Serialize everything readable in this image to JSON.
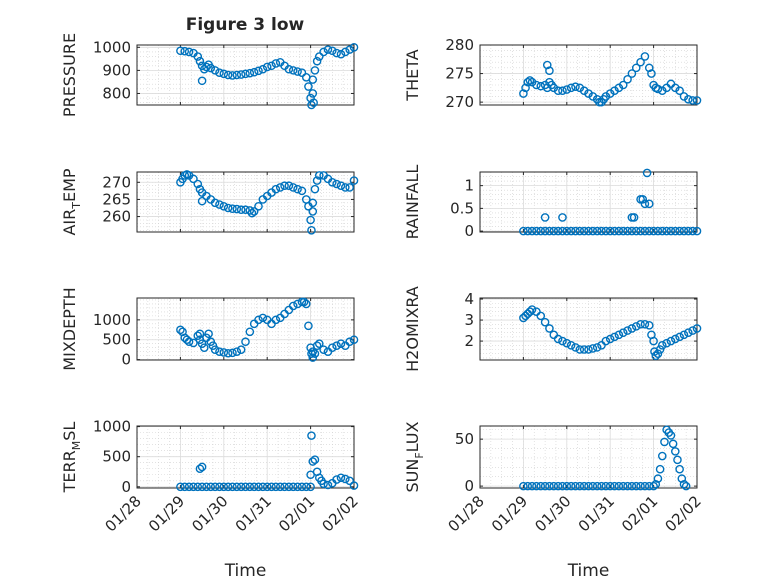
{
  "figure": {
    "title": "Figure 3 low",
    "marker_color": "#0072BD"
  },
  "x_axis": {
    "label": "Time",
    "ticks": [
      0,
      1,
      2,
      3,
      4,
      5
    ],
    "tick_labels": [
      "01/28",
      "01/29",
      "01/30",
      "01/31",
      "02/01",
      "02/02"
    ]
  },
  "chart_data": [
    {
      "type": "scatter",
      "ylabel": "PRESSURE",
      "ylim": [
        750,
        1010
      ],
      "yticks": [
        800,
        900,
        1000
      ],
      "ytick_labels": [
        "800",
        "900",
        "1000"
      ],
      "grid": true,
      "x": [
        1.0,
        1.1,
        1.2,
        1.3,
        1.4,
        1.45,
        1.5,
        1.55,
        1.6,
        1.65,
        1.7,
        1.8,
        1.9,
        2.0,
        2.1,
        2.2,
        2.3,
        2.4,
        2.5,
        2.6,
        2.7,
        2.8,
        2.9,
        3.0,
        3.1,
        3.2,
        3.3,
        3.4,
        3.5,
        3.6,
        3.7,
        3.8,
        3.9,
        3.95,
        4.0,
        4.02,
        4.05,
        4.1,
        4.15,
        4.2,
        4.3,
        4.4,
        4.5,
        4.6,
        4.7,
        4.8,
        4.9,
        5.0,
        4.05,
        4.07,
        1.5
      ],
      "y": [
        985,
        983,
        980,
        975,
        960,
        940,
        920,
        905,
        915,
        925,
        910,
        900,
        890,
        885,
        880,
        878,
        880,
        882,
        885,
        888,
        892,
        898,
        905,
        915,
        920,
        930,
        935,
        920,
        905,
        900,
        895,
        890,
        870,
        830,
        780,
        750,
        860,
        900,
        940,
        960,
        980,
        990,
        985,
        975,
        970,
        980,
        990,
        1000,
        800,
        760,
        855
      ]
    },
    {
      "type": "scatter",
      "ylabel": "THETA",
      "ylim": [
        269.5,
        280
      ],
      "yticks": [
        270,
        275,
        280
      ],
      "ytick_labels": [
        "270",
        "275",
        "280"
      ],
      "grid": true,
      "x": [
        1.0,
        1.05,
        1.1,
        1.15,
        1.2,
        1.3,
        1.4,
        1.5,
        1.55,
        1.6,
        1.65,
        1.7,
        1.8,
        1.9,
        2.0,
        2.1,
        2.2,
        2.3,
        2.4,
        2.5,
        2.6,
        2.7,
        2.75,
        2.8,
        2.85,
        2.9,
        3.0,
        3.1,
        3.2,
        3.3,
        3.4,
        3.5,
        3.6,
        3.7,
        3.8,
        3.9,
        3.95,
        4.0,
        4.05,
        4.1,
        4.2,
        4.3,
        4.4,
        4.5,
        4.6,
        4.7,
        4.8,
        4.9,
        5.0,
        1.55,
        1.6
      ],
      "y": [
        271.5,
        272.5,
        273.5,
        273.8,
        273.5,
        273,
        272.8,
        273,
        272.5,
        273.5,
        273,
        272.5,
        272,
        272,
        272.2,
        272.5,
        272.7,
        272.5,
        272,
        271.5,
        271,
        270.5,
        270,
        270,
        270.5,
        271,
        271.5,
        272,
        272.5,
        273,
        274,
        275,
        276,
        277,
        278,
        276,
        275,
        273,
        272.5,
        272.3,
        272,
        272.5,
        273.2,
        272.5,
        272,
        271,
        270.5,
        270.3,
        270.3,
        276.5,
        275.5
      ]
    },
    {
      "type": "scatter",
      "ylabel": "AIR_TEMP",
      "ylim": [
        255.5,
        273
      ],
      "yticks": [
        260,
        265,
        270
      ],
      "ytick_labels": [
        "260",
        "265",
        "270"
      ],
      "grid": true,
      "x": [
        1.0,
        1.05,
        1.1,
        1.15,
        1.2,
        1.3,
        1.4,
        1.45,
        1.5,
        1.6,
        1.7,
        1.8,
        1.9,
        2.0,
        2.1,
        2.2,
        2.3,
        2.4,
        2.5,
        2.6,
        2.65,
        2.7,
        2.8,
        2.9,
        3.0,
        3.1,
        3.2,
        3.3,
        3.4,
        3.5,
        3.6,
        3.7,
        3.8,
        3.9,
        3.95,
        4.0,
        4.02,
        4.05,
        4.1,
        4.15,
        4.2,
        4.3,
        4.4,
        4.5,
        4.6,
        4.7,
        4.8,
        4.9,
        5.0,
        4.05,
        1.5
      ],
      "y": [
        270,
        271,
        272,
        272.3,
        272,
        271,
        269.5,
        268,
        267,
        266,
        265,
        264,
        263.5,
        263,
        262.5,
        262.3,
        262.2,
        262,
        262,
        261.8,
        261,
        261.5,
        263,
        265,
        266,
        267,
        268,
        268.5,
        269,
        269,
        268.5,
        268,
        267.5,
        265,
        263,
        259,
        256,
        264,
        268,
        270.5,
        272,
        272,
        271,
        270,
        269.5,
        269,
        268.5,
        268.5,
        270.5,
        261.5,
        264.5
      ]
    },
    {
      "type": "scatter",
      "ylabel": "RAINFALL",
      "ylim": [
        -0.02,
        1.3
      ],
      "yticks": [
        0,
        0.5,
        1
      ],
      "ytick_labels": [
        "0",
        "0.5",
        "1"
      ],
      "grid": true,
      "x": [
        1.0,
        1.1,
        1.2,
        1.3,
        1.4,
        1.5,
        1.6,
        1.7,
        1.8,
        1.9,
        2.0,
        2.1,
        2.2,
        2.3,
        2.4,
        2.5,
        2.6,
        2.7,
        2.8,
        2.9,
        3.0,
        3.1,
        3.2,
        3.3,
        3.4,
        3.5,
        3.6,
        3.7,
        3.8,
        3.9,
        4.0,
        4.1,
        4.2,
        4.3,
        4.4,
        4.5,
        4.6,
        4.7,
        4.8,
        4.9,
        5.0,
        1.5,
        1.9,
        3.5,
        3.55,
        3.7,
        3.75,
        3.8,
        3.85,
        3.9
      ],
      "y": [
        0,
        0,
        0,
        0,
        0,
        0,
        0,
        0,
        0,
        0,
        0,
        0,
        0,
        0,
        0,
        0,
        0,
        0,
        0,
        0,
        0,
        0,
        0,
        0,
        0,
        0,
        0,
        0,
        0,
        0,
        0,
        0,
        0,
        0,
        0,
        0,
        0,
        0,
        0,
        0,
        0,
        0.3,
        0.3,
        0.3,
        0.3,
        0.7,
        0.7,
        0.6,
        1.28,
        0.6
      ]
    },
    {
      "type": "scatter",
      "ylabel": "MIXDEPTH",
      "ylim": [
        -10,
        1550
      ],
      "yticks": [
        0,
        500,
        1000
      ],
      "ytick_labels": [
        "0",
        "500",
        "1000"
      ],
      "grid": true,
      "x": [
        1.0,
        1.05,
        1.1,
        1.15,
        1.2,
        1.3,
        1.4,
        1.45,
        1.5,
        1.55,
        1.6,
        1.65,
        1.7,
        1.75,
        1.8,
        1.9,
        2.0,
        2.1,
        2.2,
        2.3,
        2.4,
        2.5,
        2.6,
        2.7,
        2.8,
        2.9,
        3.0,
        3.1,
        3.2,
        3.3,
        3.4,
        3.5,
        3.6,
        3.7,
        3.8,
        3.85,
        3.9,
        3.95,
        4.0,
        4.02,
        4.05,
        4.1,
        4.15,
        4.2,
        4.3,
        4.4,
        4.5,
        4.6,
        4.7,
        4.8,
        4.9,
        5.0,
        4.05,
        1.45
      ],
      "y": [
        750,
        700,
        550,
        500,
        450,
        420,
        600,
        650,
        400,
        300,
        550,
        650,
        450,
        350,
        250,
        200,
        180,
        160,
        170,
        200,
        250,
        450,
        700,
        900,
        1000,
        1050,
        1000,
        900,
        1000,
        1050,
        1150,
        1250,
        1350,
        1400,
        1450,
        1450,
        1400,
        850,
        300,
        150,
        50,
        150,
        350,
        400,
        250,
        200,
        300,
        350,
        400,
        350,
        450,
        500,
        200,
        500
      ]
    },
    {
      "type": "scatter",
      "ylabel": "H2OMIXRA",
      "ylim": [
        1.1,
        4.05
      ],
      "yticks": [
        2,
        3,
        4
      ],
      "ytick_labels": [
        "2",
        "3",
        "4"
      ],
      "grid": true,
      "x": [
        1.0,
        1.05,
        1.1,
        1.15,
        1.2,
        1.3,
        1.4,
        1.5,
        1.6,
        1.7,
        1.8,
        1.9,
        2.0,
        2.1,
        2.2,
        2.3,
        2.4,
        2.5,
        2.6,
        2.7,
        2.8,
        2.9,
        3.0,
        3.1,
        3.2,
        3.3,
        3.4,
        3.5,
        3.6,
        3.7,
        3.8,
        3.9,
        3.95,
        4.0,
        4.02,
        4.05,
        4.1,
        4.15,
        4.2,
        4.3,
        4.4,
        4.5,
        4.6,
        4.7,
        4.8,
        4.9,
        5.0
      ],
      "y": [
        3.1,
        3.2,
        3.3,
        3.4,
        3.5,
        3.4,
        3.2,
        2.9,
        2.6,
        2.3,
        2.1,
        2.0,
        1.9,
        1.8,
        1.7,
        1.6,
        1.6,
        1.6,
        1.65,
        1.7,
        1.8,
        2.0,
        2.1,
        2.2,
        2.3,
        2.4,
        2.5,
        2.6,
        2.7,
        2.8,
        2.8,
        2.75,
        2.3,
        2.0,
        1.5,
        1.3,
        1.4,
        1.6,
        1.8,
        1.9,
        2.0,
        2.1,
        2.2,
        2.3,
        2.4,
        2.5,
        2.6
      ]
    },
    {
      "type": "scatter",
      "ylabel": "TERR_MSL",
      "ylim": [
        -20,
        1010
      ],
      "yticks": [
        0,
        500,
        1000
      ],
      "ytick_labels": [
        "0",
        "500",
        "1000"
      ],
      "grid": true,
      "x": [
        1.0,
        1.1,
        1.2,
        1.3,
        1.4,
        1.5,
        1.6,
        1.7,
        1.8,
        1.9,
        2.0,
        2.1,
        2.2,
        2.3,
        2.4,
        2.5,
        2.6,
        2.7,
        2.8,
        2.9,
        3.0,
        3.1,
        3.2,
        3.3,
        3.4,
        3.5,
        3.6,
        3.7,
        3.8,
        3.9,
        4.0,
        1.45,
        1.5,
        4.0,
        4.02,
        4.05,
        4.1,
        4.15,
        4.2,
        4.25,
        4.3,
        4.4,
        4.5,
        4.6,
        4.7,
        4.8,
        4.9,
        5.0
      ],
      "y": [
        0,
        0,
        0,
        0,
        0,
        0,
        0,
        0,
        0,
        0,
        0,
        0,
        0,
        0,
        0,
        0,
        0,
        0,
        0,
        0,
        0,
        0,
        0,
        0,
        0,
        0,
        0,
        0,
        0,
        0,
        0,
        300,
        330,
        200,
        850,
        420,
        450,
        250,
        150,
        100,
        50,
        30,
        60,
        120,
        150,
        130,
        100,
        20
      ]
    },
    {
      "type": "scatter",
      "ylabel": "SUN_FLUX",
      "ylim": [
        -2,
        64
      ],
      "yticks": [
        0,
        50
      ],
      "ytick_labels": [
        "0",
        "50"
      ],
      "grid": true,
      "x": [
        1.0,
        1.1,
        1.2,
        1.3,
        1.4,
        1.5,
        1.6,
        1.7,
        1.8,
        1.9,
        2.0,
        2.1,
        2.2,
        2.3,
        2.4,
        2.5,
        2.6,
        2.7,
        2.8,
        2.9,
        3.0,
        3.1,
        3.2,
        3.3,
        3.4,
        3.5,
        3.6,
        3.7,
        3.8,
        3.9,
        4.0,
        4.05,
        4.1,
        4.15,
        4.2,
        4.25,
        4.3,
        4.35,
        4.4,
        4.45,
        4.5,
        4.55,
        4.6,
        4.65,
        4.7,
        4.75
      ],
      "y": [
        0,
        0,
        0,
        0,
        0,
        0,
        0,
        0,
        0,
        0,
        0,
        0,
        0,
        0,
        0,
        0,
        0,
        0,
        0,
        0,
        0,
        0,
        0,
        0,
        0,
        0,
        0,
        0,
        0,
        0,
        0,
        2,
        8,
        18,
        32,
        47,
        60,
        57,
        54,
        45,
        37,
        28,
        18,
        8,
        2,
        0
      ]
    }
  ]
}
